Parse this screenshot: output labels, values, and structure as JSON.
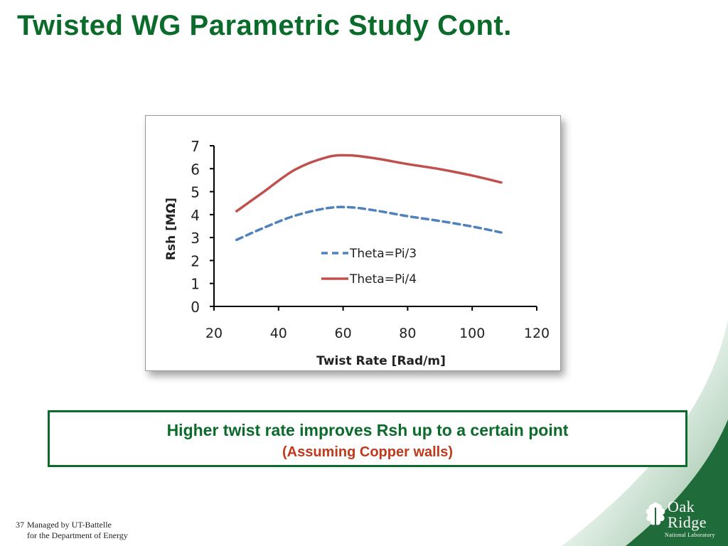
{
  "slide": {
    "title": "Twisted WG Parametric Study Cont.",
    "page_number": "37",
    "footer_line1": "Managed by UT-Battelle",
    "footer_line2": "for the Department of Energy"
  },
  "callout": {
    "main": "Higher twist rate improves Rsh up to a certain point",
    "sub": "(Assuming Copper walls)"
  },
  "logo": {
    "line1": "Oak",
    "line2": "Ridge",
    "line3": "National Laboratory"
  },
  "colors": {
    "title_green": "#0b6b2a",
    "callout_red": "#c0391b",
    "series_blue": "#4f81bd",
    "series_red": "#c0504d"
  },
  "chart_data": {
    "type": "line",
    "title": "",
    "xlabel": "Twist Rate [Rad/m]",
    "ylabel": "Rsh [MΩ]",
    "xlim": [
      20,
      120
    ],
    "ylim": [
      0,
      7
    ],
    "xticks": [
      20,
      40,
      60,
      80,
      100,
      120
    ],
    "yticks": [
      0,
      1,
      2,
      3,
      4,
      5,
      6,
      7
    ],
    "grid": false,
    "legend_position": "inside-lower-right",
    "series": [
      {
        "name": "Theta=Pi/3",
        "style": "dashed",
        "color": "#4f81bd",
        "x": [
          27,
          35,
          45,
          55,
          62,
          70,
          80,
          90,
          100,
          109
        ],
        "y": [
          2.9,
          3.4,
          3.95,
          4.28,
          4.32,
          4.18,
          3.93,
          3.72,
          3.48,
          3.22
        ]
      },
      {
        "name": "Theta=Pi/4",
        "style": "solid",
        "color": "#c0504d",
        "x": [
          27,
          35,
          45,
          55,
          62,
          70,
          80,
          90,
          100,
          109
        ],
        "y": [
          4.15,
          4.95,
          5.95,
          6.5,
          6.58,
          6.45,
          6.2,
          5.98,
          5.7,
          5.4
        ]
      }
    ]
  }
}
